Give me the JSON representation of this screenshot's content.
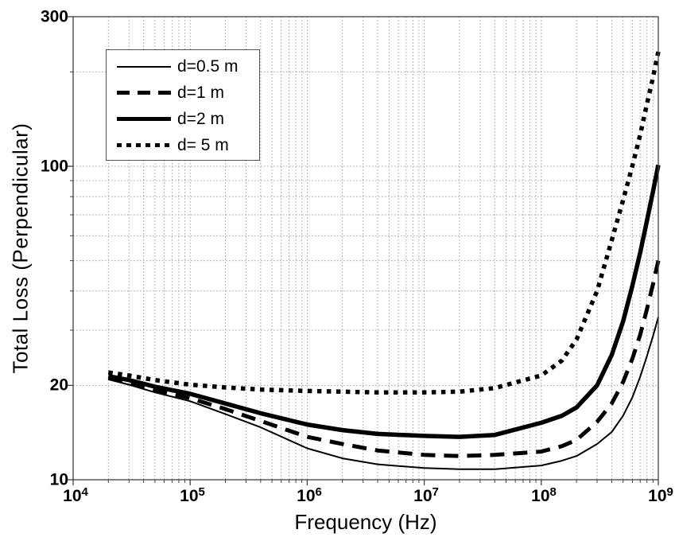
{
  "figure": {
    "background": "#ffffff",
    "curve_color": "#000000",
    "grid_color": "#a0a0a0",
    "axis_color": "#404040"
  },
  "chart_data": {
    "type": "line",
    "title": "",
    "xlabel": "Frequency (Hz)",
    "ylabel": "Total Loss (Perpendicular)",
    "x_scale": "log",
    "y_scale": "log",
    "xlim": [
      10000,
      1000000000
    ],
    "ylim": [
      10,
      300
    ],
    "grid": "on",
    "legend_position": "top-left",
    "x_tick_labels": [
      {
        "base": "10",
        "exp": "4"
      },
      {
        "base": "10",
        "exp": "5"
      },
      {
        "base": "10",
        "exp": "6"
      },
      {
        "base": "10",
        "exp": "7"
      },
      {
        "base": "10",
        "exp": "8"
      },
      {
        "base": "10",
        "exp": "9"
      }
    ],
    "y_tick_labels": [
      "300",
      "100",
      "20",
      "10"
    ],
    "y_ticks": [
      300,
      100,
      20,
      10
    ],
    "y_minor_gridlines": [
      20,
      30,
      40,
      50,
      60,
      70,
      80,
      90,
      100,
      200
    ],
    "x": [
      20000,
      30000,
      50000,
      100000,
      200000,
      400000,
      1000000,
      2000000,
      4000000,
      10000000,
      20000000,
      40000000,
      100000000,
      150000000,
      200000000,
      300000000,
      400000000,
      500000000,
      600000000,
      700000000,
      800000000,
      900000000,
      1000000000
    ],
    "series": [
      {
        "name": "d=0.5 m",
        "style": "solid-thin",
        "values": [
          20.9,
          20.1,
          19.0,
          17.8,
          16.2,
          14.7,
          12.6,
          11.7,
          11.2,
          10.9,
          10.8,
          10.8,
          11.1,
          11.5,
          11.9,
          13.0,
          14.2,
          16.0,
          18.3,
          21.3,
          24.8,
          28.7,
          33.0
        ]
      },
      {
        "name": "d=1 m",
        "style": "dashed-thick",
        "values": [
          21.1,
          20.4,
          19.3,
          18.2,
          16.8,
          15.4,
          13.7,
          13.0,
          12.4,
          12.0,
          11.9,
          12.0,
          12.3,
          12.8,
          13.4,
          15.3,
          17.5,
          20.5,
          24.3,
          29.0,
          35.0,
          42.0,
          50.0
        ]
      },
      {
        "name": "d=2 m",
        "style": "solid-thick",
        "values": [
          21.4,
          20.8,
          19.8,
          18.8,
          17.5,
          16.3,
          15.0,
          14.4,
          14.0,
          13.8,
          13.7,
          13.9,
          15.2,
          16.0,
          17.0,
          20.0,
          25.0,
          32.0,
          41.5,
          53.0,
          67.0,
          83.0,
          101.0
        ]
      },
      {
        "name": "d= 5 m",
        "style": "dotted-thick",
        "values": [
          22.0,
          21.5,
          20.8,
          20.1,
          19.7,
          19.4,
          19.2,
          19.1,
          19.0,
          19.0,
          19.1,
          19.6,
          21.5,
          24.0,
          28.0,
          40.0,
          58.0,
          78.0,
          100.0,
          126.0,
          158.0,
          192.0,
          232.0
        ]
      }
    ]
  }
}
